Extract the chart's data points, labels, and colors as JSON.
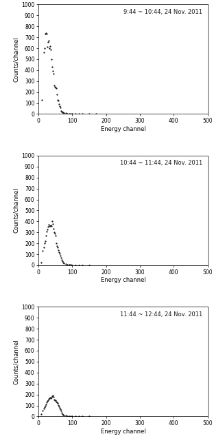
{
  "panels": [
    {
      "label": "9:44 ~ 10:44, 24 Nov. 2011",
      "xlabel": "Energy channel",
      "ylabel": "Counts/channel",
      "xlim": [
        0,
        500
      ],
      "ylim": [
        0,
        1000
      ],
      "yticks": [
        0,
        100,
        200,
        300,
        400,
        500,
        600,
        700,
        800,
        900,
        1000
      ],
      "xticks": [
        0,
        100,
        200,
        300,
        400,
        500
      ],
      "data_x": [
        10,
        15,
        18,
        20,
        22,
        24,
        26,
        28,
        30,
        32,
        34,
        36,
        38,
        40,
        42,
        44,
        46,
        48,
        50,
        52,
        54,
        56,
        58,
        60,
        62,
        64,
        66,
        68,
        70,
        72,
        75,
        80,
        85,
        90,
        95,
        100,
        110,
        120,
        130,
        150,
        170
      ],
      "data_y": [
        130,
        560,
        600,
        730,
        740,
        730,
        610,
        655,
        670,
        600,
        620,
        590,
        500,
        430,
        390,
        370,
        260,
        250,
        240,
        235,
        180,
        130,
        125,
        90,
        75,
        60,
        30,
        22,
        18,
        15,
        10,
        8,
        5,
        4,
        3,
        2,
        2,
        1,
        1,
        1,
        0
      ]
    },
    {
      "label": "10:44 ~ 11:44, 24 Nov. 2011",
      "xlabel": "Energy channel",
      "ylabel": "Counts/channel",
      "xlim": [
        0,
        500
      ],
      "ylim": [
        0,
        1000
      ],
      "yticks": [
        0,
        100,
        200,
        300,
        400,
        500,
        600,
        700,
        800,
        900,
        1000
      ],
      "xticks": [
        0,
        100,
        200,
        300,
        400,
        500
      ],
      "data_x": [
        8,
        12,
        15,
        18,
        20,
        22,
        24,
        26,
        28,
        30,
        32,
        34,
        36,
        38,
        40,
        42,
        44,
        46,
        48,
        50,
        52,
        54,
        56,
        58,
        60,
        62,
        64,
        66,
        68,
        70,
        72,
        75,
        80,
        85,
        90,
        95,
        100,
        110,
        120,
        130,
        150
      ],
      "data_y": [
        25,
        130,
        160,
        200,
        220,
        270,
        310,
        325,
        350,
        370,
        360,
        355,
        365,
        360,
        400,
        375,
        330,
        300,
        290,
        270,
        200,
        175,
        160,
        140,
        120,
        105,
        90,
        70,
        50,
        35,
        25,
        18,
        10,
        8,
        5,
        3,
        2,
        1,
        1,
        0,
        0
      ]
    },
    {
      "label": "11:44 ~ 12:44, 24 Nov. 2011",
      "xlabel": "Energy channel",
      "ylabel": "Counts/channel",
      "xlim": [
        0,
        500
      ],
      "ylim": [
        0,
        1000
      ],
      "yticks": [
        0,
        100,
        200,
        300,
        400,
        500,
        600,
        700,
        800,
        900,
        1000
      ],
      "xticks": [
        0,
        100,
        200,
        300,
        400,
        500
      ],
      "data_x": [
        8,
        12,
        15,
        18,
        20,
        22,
        24,
        26,
        28,
        30,
        32,
        34,
        36,
        38,
        40,
        42,
        44,
        46,
        48,
        50,
        52,
        54,
        56,
        58,
        60,
        62,
        64,
        66,
        68,
        70,
        72,
        75,
        80,
        85,
        90,
        95,
        100,
        110,
        120,
        130,
        150
      ],
      "data_y": [
        20,
        55,
        70,
        85,
        100,
        110,
        130,
        140,
        150,
        160,
        165,
        170,
        165,
        175,
        185,
        190,
        180,
        155,
        150,
        145,
        135,
        130,
        120,
        105,
        90,
        80,
        65,
        50,
        35,
        20,
        15,
        10,
        8,
        5,
        3,
        2,
        1,
        0,
        0,
        0,
        0
      ]
    }
  ],
  "marker": ".",
  "markersize": 2.5,
  "color": "#1a1a1a",
  "bg_color": "#ffffff",
  "label_fontsize": 6,
  "tick_fontsize": 5.5,
  "annotation_fontsize": 6,
  "figsize": [
    3.12,
    6.43
  ],
  "dpi": 100
}
